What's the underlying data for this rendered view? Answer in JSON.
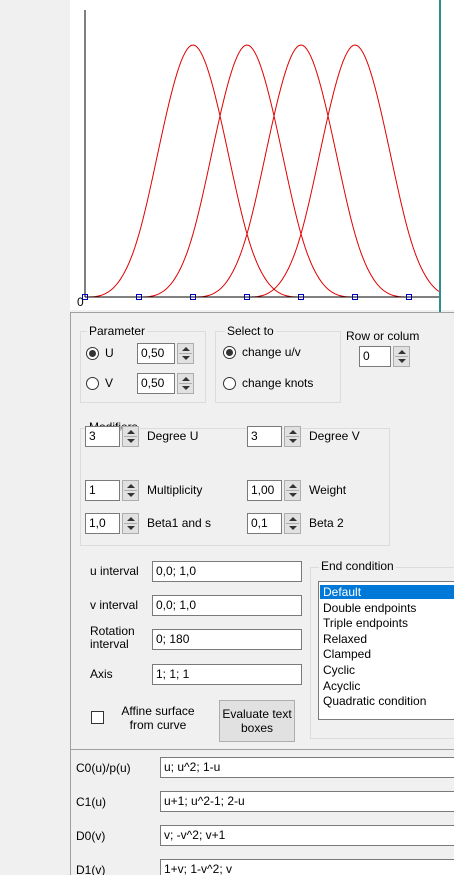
{
  "plot": {
    "origin_label": "0"
  },
  "parameter": {
    "title": "Parameter",
    "u_label": "U",
    "u_value": "0,50",
    "v_label": "V",
    "v_value": "0,50"
  },
  "select_to": {
    "title": "Select to",
    "options": [
      "change u/v",
      "change knots"
    ]
  },
  "row_or_column": {
    "label": "Row or colum",
    "value": "0"
  },
  "modifiers": {
    "title": "Modifiers",
    "rows": [
      [
        {
          "value": "3",
          "label": "Degree U"
        },
        {
          "value": "3",
          "label": "Degree V"
        }
      ],
      [
        {
          "value": "1",
          "label": "Multiplicity"
        },
        {
          "value": "1,00",
          "label": "Weight"
        }
      ],
      [
        {
          "value": "1,0",
          "label": "Beta1 and s"
        },
        {
          "value": "0,1",
          "label": "Beta 2"
        }
      ]
    ]
  },
  "intervals": [
    {
      "label": "u interval",
      "value": "0,0; 1,0"
    },
    {
      "label": "v interval",
      "value": "0,0; 1,0"
    },
    {
      "label": "Rotation interval",
      "value": "0; 180"
    },
    {
      "label": "Axis",
      "value": "1; 1; 1"
    }
  ],
  "end_condition": {
    "title": "End condition",
    "items": [
      "Default",
      "Double endpoints",
      "Triple endpoints",
      "Relaxed",
      "Clamped",
      "Cyclic",
      "Acyclic",
      "Quadratic condition"
    ]
  },
  "affine_checkbox": "Affine surface from curve",
  "evaluate_button": "Evaluate text boxes",
  "curves": [
    {
      "label": "C0(u)/p(u)",
      "value": "u; u^2; 1-u"
    },
    {
      "label": "C1(u)",
      "value": "u+1; u^2-1; 2-u"
    },
    {
      "label": "D0(v)",
      "value": "v; -v^2; v+1"
    },
    {
      "label": "D1(v)",
      "value": "1+v; 1-v^2; v"
    }
  ]
}
